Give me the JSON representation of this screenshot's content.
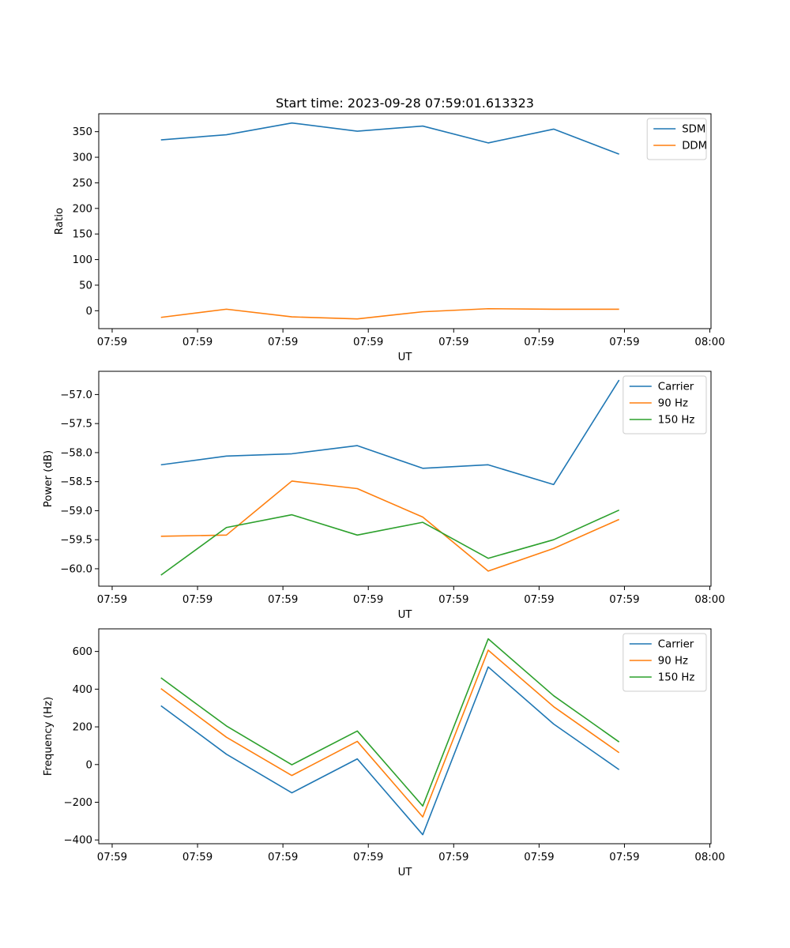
{
  "figure_title": "Start time: 2023-09-28 07:59:01.613323",
  "chart_data": [
    {
      "type": "line",
      "title": "Start time: 2023-09-28 07:59:01.613323",
      "xlabel": "UT",
      "ylabel": "Ratio",
      "x_tick_labels": [
        "07:59",
        "07:59",
        "07:59",
        "07:59",
        "07:59",
        "07:59",
        "07:59",
        "08:00"
      ],
      "y_ticks": [
        0,
        50,
        100,
        150,
        200,
        250,
        300,
        350
      ],
      "ylim": [
        -35,
        385
      ],
      "grid": false,
      "legend_position": "top-right",
      "series": [
        {
          "name": "SDM",
          "color": "#1f77b4",
          "values": [
            334,
            344,
            367,
            351,
            361,
            328,
            355,
            306
          ]
        },
        {
          "name": "DDM",
          "color": "#ff7f0e",
          "values": [
            -13,
            3,
            -12,
            -16,
            -2,
            4,
            3,
            3
          ]
        }
      ]
    },
    {
      "type": "line",
      "xlabel": "UT",
      "ylabel": "Power (dB)",
      "x_tick_labels": [
        "07:59",
        "07:59",
        "07:59",
        "07:59",
        "07:59",
        "07:59",
        "07:59",
        "08:00"
      ],
      "y_ticks": [
        -60.0,
        -59.5,
        -59.0,
        -58.5,
        -58.0,
        -57.5,
        -57.0
      ],
      "ylim": [
        -60.3,
        -56.6
      ],
      "grid": false,
      "legend_position": "top-right",
      "series": [
        {
          "name": "Carrier",
          "color": "#1f77b4",
          "values": [
            -58.21,
            -58.06,
            -58.02,
            -57.88,
            -58.27,
            -58.21,
            -58.55,
            -56.75
          ]
        },
        {
          "name": "90 Hz",
          "color": "#ff7f0e",
          "values": [
            -59.44,
            -59.42,
            -58.49,
            -58.62,
            -59.11,
            -60.04,
            -59.65,
            -59.15
          ]
        },
        {
          "name": "150 Hz",
          "color": "#2ca02c",
          "values": [
            -60.11,
            -59.29,
            -59.07,
            -59.42,
            -59.2,
            -59.82,
            -59.5,
            -58.99
          ]
        }
      ]
    },
    {
      "type": "line",
      "xlabel": "UT",
      "ylabel": "Frequency (Hz)",
      "x_tick_labels": [
        "07:59",
        "07:59",
        "07:59",
        "07:59",
        "07:59",
        "07:59",
        "07:59",
        "08:00"
      ],
      "y_ticks": [
        -400,
        -200,
        0,
        200,
        400,
        600
      ],
      "ylim": [
        -420,
        720
      ],
      "grid": false,
      "legend_position": "top-right",
      "series": [
        {
          "name": "Carrier",
          "color": "#1f77b4",
          "values": [
            312,
            55,
            -150,
            30,
            -372,
            518,
            215,
            -27
          ]
        },
        {
          "name": "90 Hz",
          "color": "#ff7f0e",
          "values": [
            403,
            145,
            -58,
            123,
            -278,
            607,
            307,
            63
          ]
        },
        {
          "name": "150 Hz",
          "color": "#2ca02c",
          "values": [
            460,
            205,
            -1,
            178,
            -220,
            667,
            365,
            120
          ]
        }
      ]
    }
  ]
}
